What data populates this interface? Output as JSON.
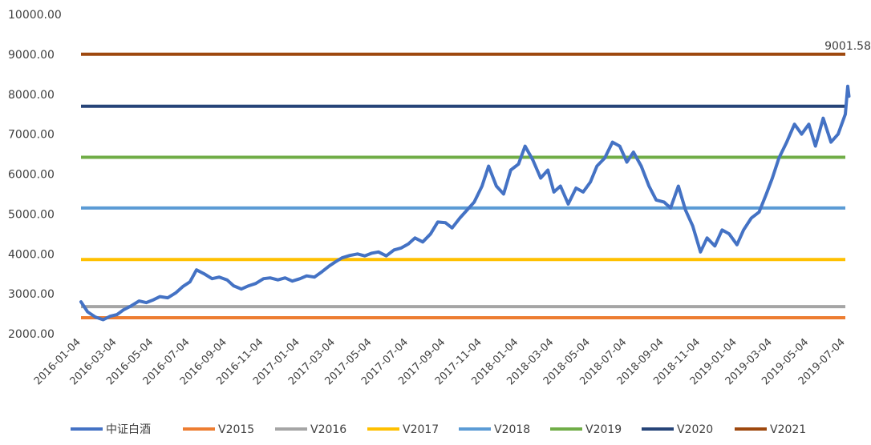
{
  "chart_data": {
    "type": "line",
    "title": "",
    "xlabel": "",
    "ylabel": "",
    "ylim": [
      2000,
      10000
    ],
    "y_ticks": [
      "10000.00",
      "9000.00",
      "8000.00",
      "7000.00",
      "6000.00",
      "5000.00",
      "4000.00",
      "3000.00",
      "2000.00"
    ],
    "x_ticks": [
      "2016-01-04",
      "2016-03-04",
      "2016-05-04",
      "2016-07-04",
      "2016-09-04",
      "2016-11-04",
      "2017-01-04",
      "2017-03-04",
      "2017-05-04",
      "2017-07-04",
      "2017-09-04",
      "2017-11-04",
      "2018-01-04",
      "2018-03-04",
      "2018-05-04",
      "2018-07-04",
      "2018-09-04",
      "2018-11-04",
      "2019-01-04",
      "2019-03-04",
      "2019-05-04",
      "2019-07-04"
    ],
    "grid": false,
    "legend_position": "bottom",
    "series": [
      {
        "name": "中证白酒",
        "color": "#4472C4",
        "kind": "index",
        "points": [
          [
            "2016-01-04",
            2800
          ],
          [
            "2016-01-15",
            2550
          ],
          [
            "2016-01-28",
            2420
          ],
          [
            "2016-02-10",
            2350
          ],
          [
            "2016-02-22",
            2440
          ],
          [
            "2016-03-04",
            2480
          ],
          [
            "2016-03-15",
            2600
          ],
          [
            "2016-03-28",
            2700
          ],
          [
            "2016-04-10",
            2820
          ],
          [
            "2016-04-22",
            2780
          ],
          [
            "2016-05-04",
            2850
          ],
          [
            "2016-05-15",
            2930
          ],
          [
            "2016-05-28",
            2900
          ],
          [
            "2016-06-10",
            3020
          ],
          [
            "2016-06-22",
            3180
          ],
          [
            "2016-07-04",
            3300
          ],
          [
            "2016-07-15",
            3600
          ],
          [
            "2016-07-28",
            3500
          ],
          [
            "2016-08-10",
            3380
          ],
          [
            "2016-08-22",
            3420
          ],
          [
            "2016-09-04",
            3350
          ],
          [
            "2016-09-15",
            3200
          ],
          [
            "2016-09-28",
            3120
          ],
          [
            "2016-10-10",
            3200
          ],
          [
            "2016-10-22",
            3260
          ],
          [
            "2016-11-04",
            3380
          ],
          [
            "2016-11-15",
            3400
          ],
          [
            "2016-11-28",
            3350
          ],
          [
            "2016-12-10",
            3400
          ],
          [
            "2016-12-22",
            3320
          ],
          [
            "2017-01-04",
            3380
          ],
          [
            "2017-01-15",
            3450
          ],
          [
            "2017-01-28",
            3420
          ],
          [
            "2017-02-10",
            3560
          ],
          [
            "2017-02-22",
            3700
          ],
          [
            "2017-03-04",
            3800
          ],
          [
            "2017-03-15",
            3900
          ],
          [
            "2017-03-28",
            3960
          ],
          [
            "2017-04-10",
            4000
          ],
          [
            "2017-04-22",
            3950
          ],
          [
            "2017-05-04",
            4020
          ],
          [
            "2017-05-15",
            4050
          ],
          [
            "2017-05-28",
            3950
          ],
          [
            "2017-06-10",
            4100
          ],
          [
            "2017-06-22",
            4150
          ],
          [
            "2017-07-04",
            4250
          ],
          [
            "2017-07-15",
            4400
          ],
          [
            "2017-07-28",
            4300
          ],
          [
            "2017-08-10",
            4500
          ],
          [
            "2017-08-22",
            4800
          ],
          [
            "2017-09-04",
            4780
          ],
          [
            "2017-09-15",
            4650
          ],
          [
            "2017-09-28",
            4900
          ],
          [
            "2017-10-10",
            5100
          ],
          [
            "2017-10-22",
            5300
          ],
          [
            "2017-11-04",
            5700
          ],
          [
            "2017-11-15",
            6200
          ],
          [
            "2017-11-28",
            5700
          ],
          [
            "2017-12-10",
            5500
          ],
          [
            "2017-12-22",
            6100
          ],
          [
            "2018-01-04",
            6250
          ],
          [
            "2018-01-15",
            6700
          ],
          [
            "2018-01-28",
            6350
          ],
          [
            "2018-02-10",
            5900
          ],
          [
            "2018-02-22",
            6100
          ],
          [
            "2018-03-04",
            5550
          ],
          [
            "2018-03-15",
            5700
          ],
          [
            "2018-03-28",
            5250
          ],
          [
            "2018-04-10",
            5650
          ],
          [
            "2018-04-22",
            5550
          ],
          [
            "2018-05-04",
            5800
          ],
          [
            "2018-05-15",
            6200
          ],
          [
            "2018-05-28",
            6400
          ],
          [
            "2018-06-10",
            6800
          ],
          [
            "2018-06-22",
            6700
          ],
          [
            "2018-07-04",
            6300
          ],
          [
            "2018-07-15",
            6550
          ],
          [
            "2018-07-28",
            6200
          ],
          [
            "2018-08-10",
            5700
          ],
          [
            "2018-08-22",
            5350
          ],
          [
            "2018-09-04",
            5300
          ],
          [
            "2018-09-15",
            5150
          ],
          [
            "2018-09-28",
            5700
          ],
          [
            "2018-10-10",
            5100
          ],
          [
            "2018-10-22",
            4700
          ],
          [
            "2018-11-04",
            4050
          ],
          [
            "2018-11-15",
            4400
          ],
          [
            "2018-11-28",
            4200
          ],
          [
            "2018-12-10",
            4600
          ],
          [
            "2018-12-22",
            4500
          ],
          [
            "2019-01-04",
            4230
          ],
          [
            "2019-01-15",
            4600
          ],
          [
            "2019-01-28",
            4900
          ],
          [
            "2019-02-10",
            5050
          ],
          [
            "2019-02-22",
            5500
          ],
          [
            "2019-03-04",
            5900
          ],
          [
            "2019-03-15",
            6400
          ],
          [
            "2019-03-28",
            6800
          ],
          [
            "2019-04-10",
            7250
          ],
          [
            "2019-04-22",
            7000
          ],
          [
            "2019-05-04",
            7250
          ],
          [
            "2019-05-15",
            6700
          ],
          [
            "2019-05-28",
            7400
          ],
          [
            "2019-06-10",
            6800
          ],
          [
            "2019-06-22",
            7000
          ],
          [
            "2019-07-04",
            7500
          ],
          [
            "2019-07-08",
            8200
          ],
          [
            "2019-07-10",
            7950
          ]
        ]
      },
      {
        "name": "V2015",
        "color": "#ED7D31",
        "kind": "constant",
        "value": 2400
      },
      {
        "name": "V2016",
        "color": "#A5A5A5",
        "kind": "constant",
        "value": 2680
      },
      {
        "name": "V2017",
        "color": "#FFC000",
        "kind": "constant",
        "value": 3860
      },
      {
        "name": "V2018",
        "color": "#5B9BD5",
        "kind": "constant",
        "value": 5150
      },
      {
        "name": "V2019",
        "color": "#70AD47",
        "kind": "constant",
        "value": 6420
      },
      {
        "name": "V2020",
        "color": "#264478",
        "kind": "constant",
        "value": 7700
      },
      {
        "name": "V2021",
        "color": "#9E480E",
        "kind": "constant",
        "value": 9001.58
      }
    ],
    "annotations": [
      {
        "series": "V2021",
        "text": "9001.58"
      }
    ]
  }
}
